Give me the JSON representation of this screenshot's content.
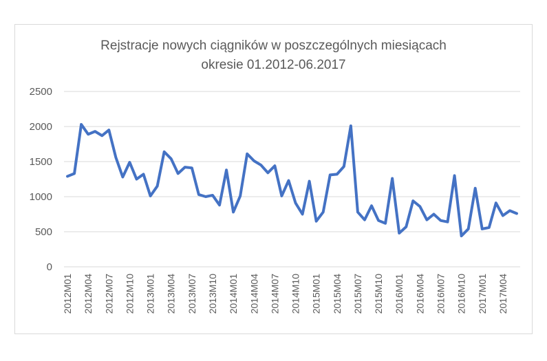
{
  "chart_data": {
    "type": "line",
    "title_lines": [
      "Rejstracje nowych ciągników  w poszczególnych miesiącach",
      "okresie 01.2012-06.2017"
    ],
    "xlabel": "",
    "ylabel": "",
    "ylim": [
      0,
      2500
    ],
    "yticks": [
      "0",
      "500",
      "1000",
      "1500",
      "2000",
      "2500"
    ],
    "grid": true,
    "legend": "none",
    "x": [
      "2012M01",
      "2012M02",
      "2012M03",
      "2012M04",
      "2012M05",
      "2012M06",
      "2012M07",
      "2012M08",
      "2012M09",
      "2012M10",
      "2012M11",
      "2012M12",
      "2013M01",
      "2013M02",
      "2013M03",
      "2013M04",
      "2013M05",
      "2013M06",
      "2013M07",
      "2013M08",
      "2013M09",
      "2013M10",
      "2013M11",
      "2013M12",
      "2014M01",
      "2014M02",
      "2014M03",
      "2014M04",
      "2014M05",
      "2014M06",
      "2014M07",
      "2014M08",
      "2014M09",
      "2014M10",
      "2014M11",
      "2014M12",
      "2015M01",
      "2015M02",
      "2015M03",
      "2015M04",
      "2015M05",
      "2015M06",
      "2015M07",
      "2015M08",
      "2015M09",
      "2015M10",
      "2015M11",
      "2015M12",
      "2016M01",
      "2016M02",
      "2016M03",
      "2016M04",
      "2016M05",
      "2016M06",
      "2016M07",
      "2016M08",
      "2016M09",
      "2016M10",
      "2016M11",
      "2016M12",
      "2017M01",
      "2017M02",
      "2017M03",
      "2017M04",
      "2017M05",
      "2017M06"
    ],
    "xtick_labels": [
      "2012M01",
      "2012M04",
      "2012M07",
      "2012M10",
      "2013M01",
      "2013M04",
      "2013M07",
      "2013M10",
      "2014M01",
      "2014M04",
      "2014M07",
      "2014M10",
      "2015M01",
      "2015M04",
      "2015M07",
      "2015M10",
      "2016M01",
      "2016M04",
      "2016M07",
      "2016M10",
      "2017M01",
      "2017M04"
    ],
    "series": [
      {
        "color": "#4472c4",
        "values": [
          1290,
          1330,
          2030,
          1890,
          1930,
          1870,
          1950,
          1560,
          1280,
          1490,
          1250,
          1320,
          1010,
          1150,
          1640,
          1540,
          1330,
          1420,
          1410,
          1030,
          1000,
          1020,
          880,
          1380,
          780,
          1010,
          1610,
          1510,
          1450,
          1340,
          1440,
          1010,
          1230,
          910,
          750,
          1220,
          650,
          780,
          1310,
          1320,
          1430,
          2010,
          780,
          670,
          870,
          660,
          620,
          1260,
          480,
          570,
          940,
          860,
          670,
          750,
          660,
          640,
          1300,
          440,
          540,
          1120,
          540,
          560,
          910,
          730,
          800,
          760
        ]
      }
    ]
  }
}
